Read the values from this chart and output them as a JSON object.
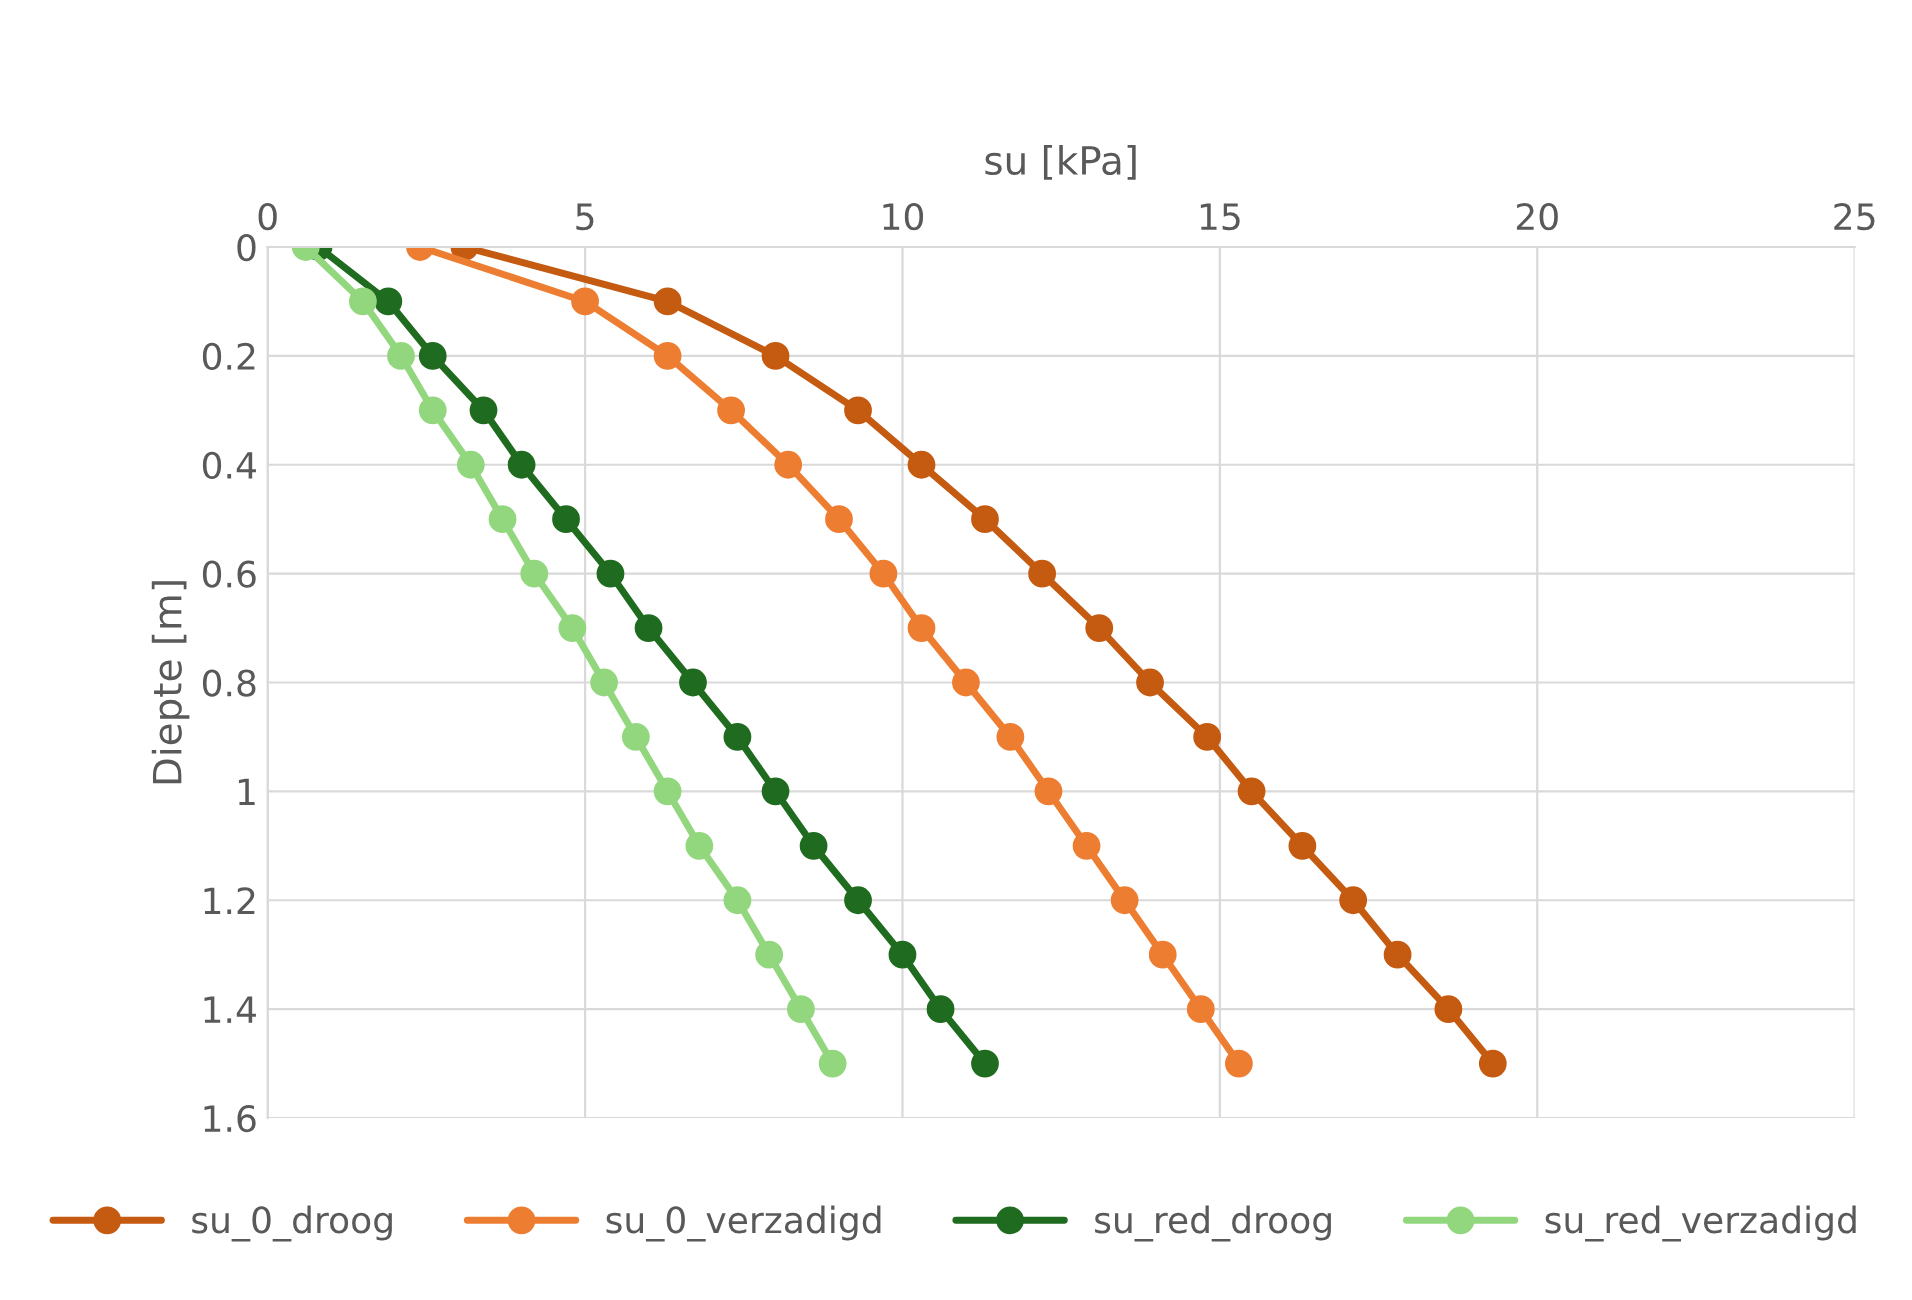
{
  "chart_data": {
    "type": "line",
    "xlabel": "su [kPa]",
    "ylabel": "Diepte [m]",
    "xlim": [
      0,
      25
    ],
    "xticks": [
      0,
      5,
      10,
      15,
      20,
      25
    ],
    "ylim": [
      1.6,
      0
    ],
    "yticks": [
      0,
      0.2,
      0.4,
      0.6,
      0.8,
      1,
      1.2,
      1.4,
      1.6
    ],
    "grid": true,
    "legend": "bottom",
    "marker": "circle",
    "line_style": "solid",
    "series": [
      {
        "name": "su_0_droog",
        "color": "#c55a11",
        "x": [
          3.1,
          6.3,
          8.0,
          9.3,
          10.3,
          11.3,
          12.2,
          13.1,
          13.9,
          14.8,
          15.5,
          16.3,
          17.1,
          17.8,
          18.6,
          19.3
        ],
        "values": [
          0,
          0.1,
          0.2,
          0.3,
          0.4,
          0.5,
          0.6,
          0.7,
          0.8,
          0.9,
          1,
          1.1,
          1.2,
          1.3,
          1.4,
          1.5
        ]
      },
      {
        "name": "su_0_verzadigd",
        "color": "#ed7d31",
        "x": [
          2.4,
          5.0,
          6.3,
          7.3,
          8.2,
          9.0,
          9.7,
          10.3,
          11.0,
          11.7,
          12.3,
          12.9,
          13.5,
          14.1,
          14.7,
          15.3
        ],
        "values": [
          0,
          0.1,
          0.2,
          0.3,
          0.4,
          0.5,
          0.6,
          0.7,
          0.8,
          0.9,
          1,
          1.1,
          1.2,
          1.3,
          1.4,
          1.5
        ]
      },
      {
        "name": "su_red_droog",
        "color": "#1f6b1f",
        "x": [
          0.8,
          1.9,
          2.6,
          3.4,
          4.0,
          4.7,
          5.4,
          6.0,
          6.7,
          7.4,
          8.0,
          8.6,
          9.3,
          10.0,
          10.6,
          11.3
        ],
        "values": [
          0,
          0.1,
          0.2,
          0.3,
          0.4,
          0.5,
          0.6,
          0.7,
          0.8,
          0.9,
          1,
          1.1,
          1.2,
          1.3,
          1.4,
          1.5
        ]
      },
      {
        "name": "su_red_verzadigd",
        "color": "#92d77e",
        "x": [
          0.6,
          1.5,
          2.1,
          2.6,
          3.2,
          3.7,
          4.2,
          4.8,
          5.3,
          5.8,
          6.3,
          6.8,
          7.4,
          7.9,
          8.4,
          8.9
        ],
        "values": [
          0,
          0.1,
          0.2,
          0.3,
          0.4,
          0.5,
          0.6,
          0.7,
          0.8,
          0.9,
          1,
          1.1,
          1.2,
          1.3,
          1.4,
          1.5
        ]
      }
    ]
  }
}
